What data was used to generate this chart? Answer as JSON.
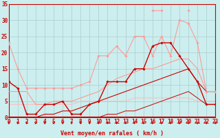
{
  "x": [
    0,
    1,
    2,
    3,
    4,
    5,
    6,
    7,
    8,
    9,
    10,
    11,
    12,
    13,
    14,
    15,
    16,
    17,
    18,
    19,
    20,
    21,
    22,
    23
  ],
  "series": [
    {
      "y": [
        23,
        15,
        9,
        9,
        9,
        9,
        9,
        9,
        10,
        11,
        19,
        19,
        22,
        19,
        25,
        25,
        19,
        25,
        19,
        30,
        29,
        23,
        8,
        8
      ],
      "color": "#ff9999",
      "lw": 0.8,
      "marker": "D",
      "ms": 1.8,
      "zorder": 4
    },
    {
      "y": [
        null,
        null,
        null,
        null,
        null,
        null,
        null,
        null,
        null,
        null,
        null,
        null,
        null,
        null,
        null,
        null,
        33,
        33,
        null,
        null,
        33,
        null,
        null,
        null
      ],
      "color": "#ff9999",
      "lw": 0.8,
      "marker": "D",
      "ms": 1.8,
      "zorder": 4
    },
    {
      "y": [
        11,
        9,
        1,
        1,
        4,
        4,
        5,
        1,
        1,
        4,
        5,
        11,
        11,
        11,
        15,
        15,
        22,
        23,
        23,
        19,
        15,
        11,
        4,
        4
      ],
      "color": "#cc0000",
      "lw": 1.0,
      "marker": "D",
      "ms": 1.8,
      "zorder": 5
    },
    {
      "y": [
        8,
        8,
        8,
        4,
        4,
        5,
        5,
        5,
        6,
        7,
        8,
        10,
        12,
        13,
        14,
        15,
        15,
        16,
        17,
        18,
        18,
        15,
        8,
        8
      ],
      "color": "#ff9999",
      "lw": 0.8,
      "marker": null,
      "ms": 0,
      "zorder": 3
    },
    {
      "y": [
        0,
        0,
        0,
        0,
        1,
        1,
        2,
        2,
        3,
        4,
        5,
        6,
        7,
        8,
        9,
        10,
        11,
        12,
        13,
        14,
        15,
        11,
        8,
        8
      ],
      "color": "#cc0000",
      "lw": 0.8,
      "marker": null,
      "ms": 0,
      "zorder": 3
    },
    {
      "y": [
        4,
        4,
        4,
        4,
        4,
        4,
        4,
        4,
        5,
        5,
        5,
        5,
        5,
        5,
        6,
        6,
        6,
        6,
        6,
        6,
        6,
        5,
        5,
        5
      ],
      "color": "#ffbbbb",
      "lw": 0.7,
      "marker": null,
      "ms": 0,
      "zorder": 2
    },
    {
      "y": [
        0,
        0,
        0,
        0,
        0,
        0,
        0,
        0,
        0,
        0,
        0,
        1,
        1,
        2,
        2,
        3,
        4,
        5,
        6,
        7,
        8,
        6,
        4,
        4
      ],
      "color": "#cc0000",
      "lw": 0.7,
      "marker": null,
      "ms": 0,
      "zorder": 2
    }
  ],
  "xlim": [
    0,
    23
  ],
  "ylim": [
    0,
    35
  ],
  "yticks": [
    0,
    5,
    10,
    15,
    20,
    25,
    30,
    35
  ],
  "xticks": [
    0,
    1,
    2,
    3,
    4,
    5,
    6,
    7,
    8,
    9,
    10,
    11,
    12,
    13,
    14,
    15,
    16,
    17,
    18,
    19,
    20,
    21,
    22,
    23
  ],
  "xlabel": "Vent moyen/en rafales ( km/h )",
  "bg_color": "#cceeee",
  "grid_color": "#aacccc",
  "axis_color": "#cc0000",
  "label_color": "#cc0000",
  "tick_fontsize": 5.5,
  "xlabel_fontsize": 6.0
}
